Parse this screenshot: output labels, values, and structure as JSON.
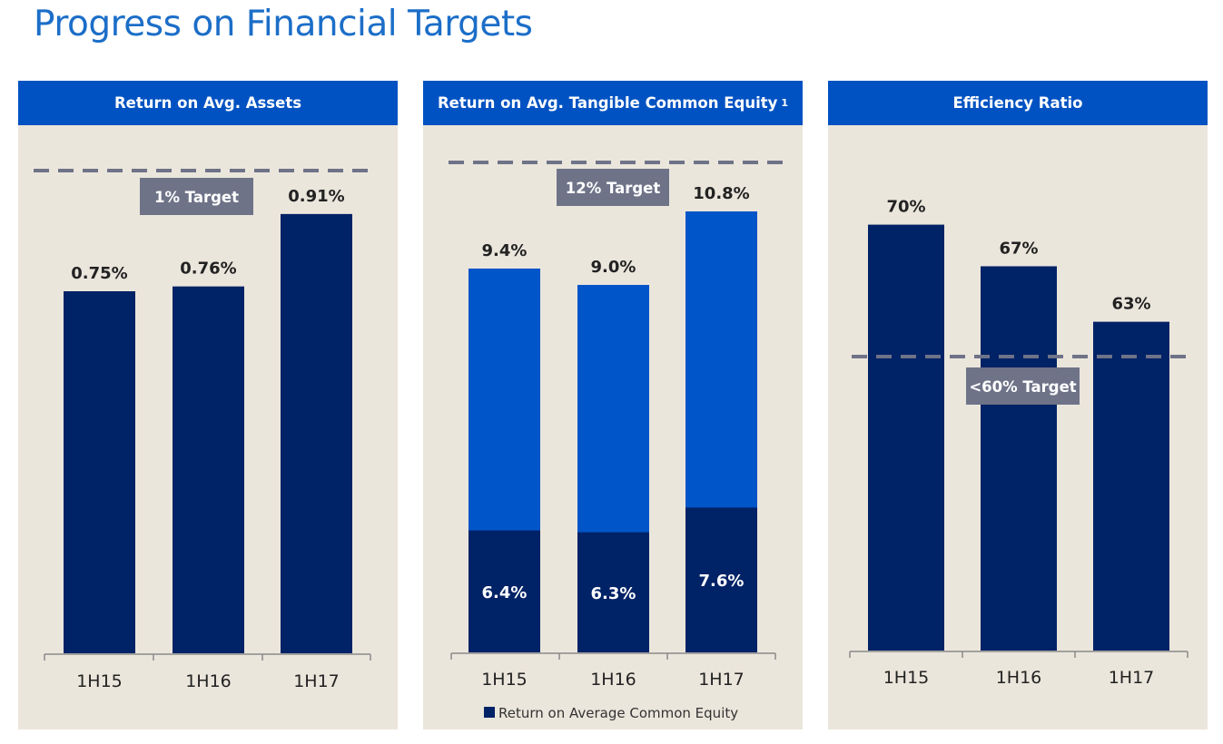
{
  "title": "Progress on Financial Targets",
  "colors": {
    "header": "#0052c2",
    "panel": "#ebe6dc",
    "bar_dark": "#002266",
    "bar_light": "#0055c8",
    "target": "#6e7388"
  },
  "chart_data": [
    {
      "type": "bar",
      "title": "Return on Avg. Assets",
      "categories": [
        "1H15",
        "1H16",
        "1H17"
      ],
      "values": [
        0.75,
        0.76,
        0.91
      ],
      "value_labels": [
        "0.75%",
        "0.76%",
        "0.91%"
      ],
      "unit": "%",
      "ylim": [
        0,
        1.0
      ],
      "target": {
        "value": 1.0,
        "label": "1% Target"
      }
    },
    {
      "type": "bar",
      "stacked": true,
      "title": "Return on Avg. Tangible Common Equity",
      "footnote": "1",
      "categories": [
        "1H15",
        "1H16",
        "1H17"
      ],
      "values": [
        9.4,
        9.0,
        10.8
      ],
      "value_labels": [
        "9.4%",
        "9.0%",
        "10.8%"
      ],
      "series": [
        {
          "name": "Return on Average Common Equity",
          "values": [
            6.4,
            6.3,
            7.6
          ],
          "labels": [
            "6.4%",
            "6.3%",
            "7.6%"
          ]
        }
      ],
      "unit": "%",
      "ylim": [
        0,
        12
      ],
      "target": {
        "value": 12,
        "label": "12% Target"
      },
      "legend": "bottom"
    },
    {
      "type": "bar",
      "title": "Efficiency Ratio",
      "categories": [
        "1H15",
        "1H16",
        "1H17"
      ],
      "values": [
        70,
        67,
        63
      ],
      "value_labels": [
        "70%",
        "67%",
        "63%"
      ],
      "unit": "%",
      "ylim": [
        39,
        75
      ],
      "target": {
        "value": 60,
        "label": "<60% Target"
      }
    }
  ]
}
